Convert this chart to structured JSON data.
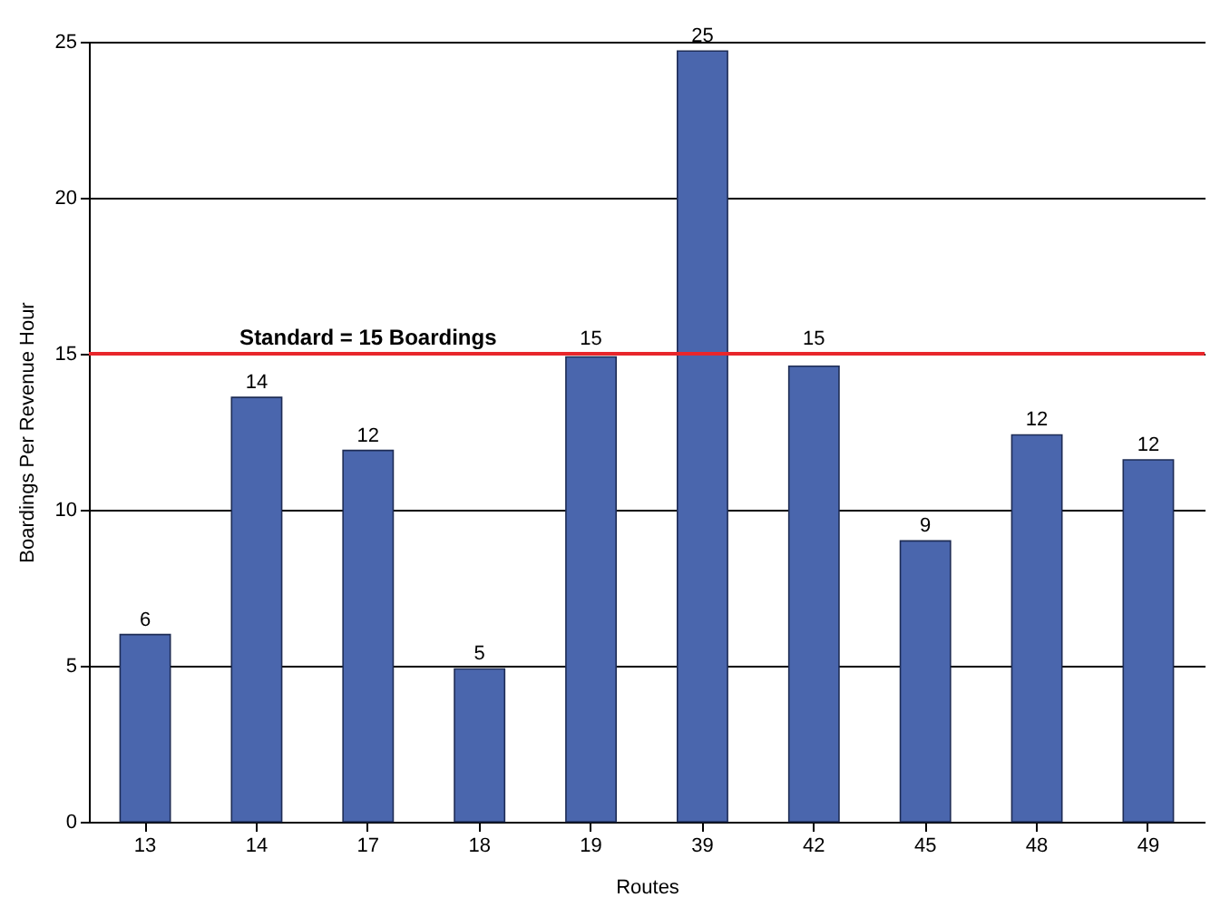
{
  "chart_data": {
    "type": "bar",
    "xlabel": "Routes",
    "ylabel": "Boardings Per Revenue Hour",
    "categories": [
      "13",
      "14",
      "17",
      "18",
      "19",
      "39",
      "42",
      "45",
      "48",
      "49"
    ],
    "values": [
      6.0,
      13.6,
      11.9,
      4.9,
      14.9,
      24.7,
      14.6,
      9.0,
      12.4,
      11.6
    ],
    "value_labels": [
      "6",
      "14",
      "12",
      "5",
      "15",
      "25",
      "15",
      "9",
      "12",
      "12"
    ],
    "color": "#4a66ad",
    "ylim": [
      0,
      25
    ],
    "yticks": [
      0,
      5,
      10,
      15,
      20,
      25
    ],
    "grid": "y",
    "ref_lines": [
      {
        "axis": "y",
        "value": 15,
        "label": "Standard = 15 Boardings",
        "color": "#e8262b"
      }
    ]
  }
}
